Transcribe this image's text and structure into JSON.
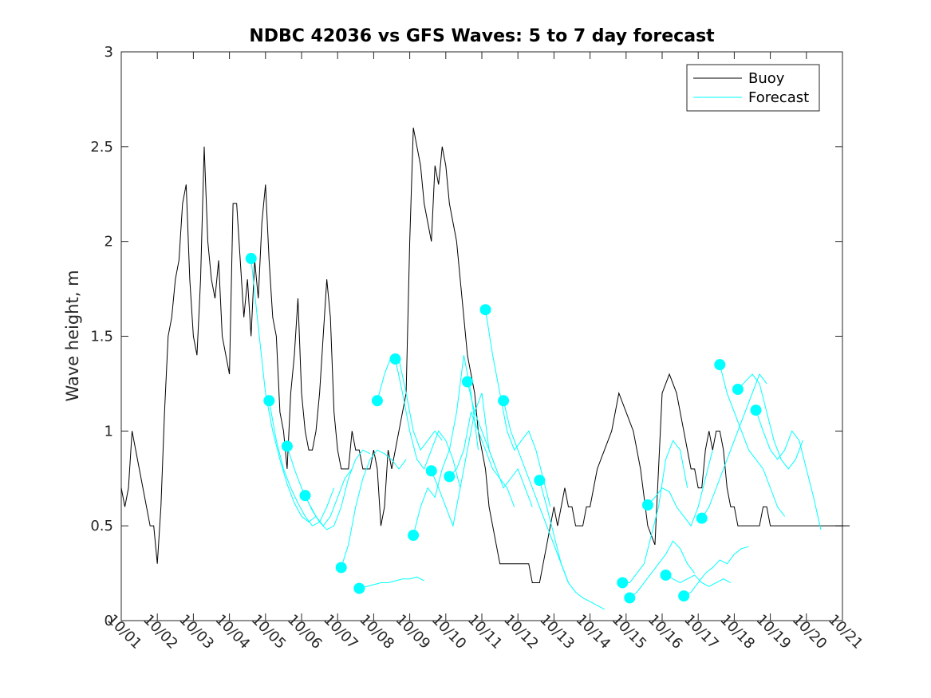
{
  "chart_data": {
    "type": "line",
    "title": "NDBC 42036 vs GFS Waves: 5 to 7 day forecast",
    "xlabel": "",
    "ylabel": "Wave height, m",
    "xlim": [
      0,
      20
    ],
    "ylim": [
      0,
      3
    ],
    "x_tick_labels": [
      "10/01",
      "10/02",
      "10/03",
      "10/04",
      "10/05",
      "10/06",
      "10/07",
      "10/08",
      "10/09",
      "10/10",
      "10/11",
      "10/12",
      "10/13",
      "10/14",
      "10/15",
      "10/16",
      "10/17",
      "10/18",
      "10/19",
      "10/20",
      "10/21"
    ],
    "y_ticks": [
      0,
      0.5,
      1,
      1.5,
      2,
      2.5,
      3
    ],
    "y_tick_labels": [
      "0",
      "0.5",
      "1",
      "1.5",
      "2",
      "2.5",
      "3"
    ],
    "legend": {
      "position": "top-right",
      "entries": [
        "Buoy",
        "Forecast"
      ]
    },
    "colors": {
      "buoy": "#000000",
      "forecast": "#00ffff",
      "axes": "#262626"
    },
    "series": [
      {
        "name": "Buoy",
        "x": [
          0,
          0.1,
          0.2,
          0.3,
          0.4,
          0.5,
          0.6,
          0.7,
          0.8,
          0.9,
          1.0,
          1.1,
          1.2,
          1.25,
          1.3,
          1.4,
          1.5,
          1.6,
          1.7,
          1.8,
          1.9,
          2.0,
          2.1,
          2.2,
          2.3,
          2.4,
          2.5,
          2.6,
          2.7,
          2.8,
          2.9,
          3.0,
          3.1,
          3.2,
          3.3,
          3.4,
          3.5,
          3.6,
          3.7,
          3.8,
          3.9,
          4.0,
          4.1,
          4.2,
          4.3,
          4.4,
          4.5,
          4.6,
          4.7,
          4.8,
          4.9,
          5.0,
          5.1,
          5.2,
          5.3,
          5.4,
          5.5,
          5.6,
          5.7,
          5.8,
          5.9,
          6.0,
          6.1,
          6.2,
          6.3,
          6.4,
          6.5,
          6.6,
          6.7,
          6.8,
          6.9,
          7.0,
          7.1,
          7.2,
          7.3,
          7.4,
          7.5,
          7.6,
          7.7,
          7.8,
          7.9,
          8.0,
          8.1,
          8.2,
          8.3,
          8.4,
          8.5,
          8.6,
          8.7,
          8.8,
          8.9,
          9.0,
          9.1,
          9.2,
          9.3,
          9.4,
          9.5,
          9.6,
          9.7,
          9.8,
          9.9,
          10.0,
          10.1,
          10.2,
          10.3,
          10.4,
          10.5,
          10.6,
          10.7,
          10.8,
          10.9,
          11.0,
          11.1,
          11.2,
          11.3,
          11.4,
          11.5,
          11.6,
          11.7,
          11.8,
          11.9,
          12.0,
          12.1,
          12.2,
          12.3,
          12.4,
          12.5,
          12.6,
          12.7,
          12.8,
          12.9,
          13.0,
          13.2,
          13.4,
          13.6,
          13.8,
          14.0,
          14.2,
          14.4,
          14.6,
          14.8,
          15.0,
          15.2,
          15.4,
          15.6,
          15.7,
          15.8,
          15.9,
          16.0,
          16.1,
          16.2,
          16.3,
          16.4,
          16.5,
          16.6,
          16.7,
          16.8,
          16.9,
          17.0,
          17.1,
          17.2,
          17.3,
          17.4,
          17.5,
          17.6,
          17.7,
          17.8,
          17.9,
          18.0,
          18.1,
          18.2,
          18.3,
          18.4,
          18.5,
          18.6,
          18.7,
          18.8,
          18.9,
          19.0,
          19.1,
          19.2,
          19.3,
          19.4,
          19.5,
          19.6,
          19.7,
          19.8,
          19.9,
          20.0,
          20.1,
          20.2
        ],
        "values": [
          0.7,
          0.6,
          0.7,
          1.0,
          0.9,
          0.8,
          0.7,
          0.6,
          0.5,
          0.5,
          0.3,
          0.6,
          1.1,
          1.3,
          1.5,
          1.6,
          1.8,
          1.9,
          2.2,
          2.3,
          1.8,
          1.5,
          1.4,
          1.8,
          2.5,
          2.0,
          1.8,
          1.7,
          1.9,
          1.5,
          1.4,
          1.3,
          2.2,
          2.2,
          1.9,
          1.6,
          1.8,
          1.5,
          1.9,
          1.7,
          2.1,
          2.3,
          1.9,
          1.6,
          1.5,
          1.1,
          1.0,
          0.8,
          1.2,
          1.4,
          1.7,
          1.2,
          1.0,
          0.9,
          0.9,
          1.0,
          1.2,
          1.5,
          1.8,
          1.6,
          1.1,
          0.9,
          0.8,
          0.8,
          0.8,
          1.0,
          0.9,
          0.9,
          0.8,
          0.8,
          0.8,
          0.9,
          0.8,
          0.5,
          0.6,
          0.9,
          0.8,
          0.9,
          1.0,
          1.1,
          1.2,
          2.0,
          2.6,
          2.5,
          2.4,
          2.2,
          2.1,
          2.0,
          2.4,
          2.3,
          2.5,
          2.4,
          2.2,
          2.1,
          2.0,
          1.8,
          1.6,
          1.4,
          1.3,
          1.2,
          1.0,
          0.9,
          0.8,
          0.6,
          0.5,
          0.4,
          0.3,
          0.3,
          0.3,
          0.3,
          0.3,
          0.3,
          0.3,
          0.3,
          0.3,
          0.2,
          0.2,
          0.2,
          0.3,
          0.4,
          0.5,
          0.6,
          0.5,
          0.6,
          0.7,
          0.6,
          0.6,
          0.5,
          0.5,
          0.5,
          0.6,
          0.6,
          0.8,
          0.9,
          1.0,
          1.2,
          1.1,
          1.0,
          0.8,
          0.5,
          0.4,
          1.2,
          1.3,
          1.2,
          1.0,
          0.9,
          0.8,
          0.8,
          0.7,
          0.7,
          0.9,
          1.0,
          0.9,
          1.0,
          1.0,
          0.9,
          0.7,
          0.6,
          0.6,
          0.5,
          0.5,
          0.5,
          0.5,
          0.5,
          0.5,
          0.5,
          0.6,
          0.6,
          0.5,
          0.5,
          0.5,
          0.5,
          0.5,
          0.5,
          0.5,
          0.5,
          0.5,
          0.5,
          0.5,
          0.5,
          0.5,
          0.5,
          0.5,
          0.5,
          0.5,
          0.5,
          0.5,
          0.5,
          0.5,
          0.5,
          0.5
        ]
      },
      {
        "name": "Forecast",
        "runs": [
          {
            "x": [
              3.6,
              3.8,
              4.0,
              4.2,
              4.4,
              4.6,
              4.8,
              5.0,
              5.2,
              5.4
            ],
            "values": [
              1.91,
              1.55,
              1.2,
              1.0,
              0.85,
              0.72,
              0.62,
              0.55,
              0.52,
              0.55
            ]
          },
          {
            "x": [
              4.1,
              4.3,
              4.5,
              4.7,
              4.9,
              5.1,
              5.3,
              5.5,
              5.7,
              5.9
            ],
            "values": [
              1.16,
              0.95,
              0.8,
              0.7,
              0.62,
              0.55,
              0.5,
              0.52,
              0.6,
              0.7
            ]
          },
          {
            "x": [
              4.6,
              4.8,
              5.0,
              5.2,
              5.4,
              5.6,
              5.8,
              6.0,
              6.2,
              6.4
            ],
            "values": [
              0.92,
              0.8,
              0.7,
              0.62,
              0.55,
              0.5,
              0.55,
              0.65,
              0.75,
              0.8
            ]
          },
          {
            "x": [
              5.1,
              5.3,
              5.5,
              5.7,
              5.9,
              6.1,
              6.3,
              6.5,
              6.7,
              6.9
            ],
            "values": [
              0.66,
              0.58,
              0.52,
              0.48,
              0.5,
              0.6,
              0.75,
              0.85,
              0.9,
              0.88
            ]
          },
          {
            "x": [
              6.1,
              6.3,
              6.5,
              6.7,
              6.9,
              7.1,
              7.3,
              7.5,
              7.7,
              7.9
            ],
            "values": [
              0.28,
              0.4,
              0.6,
              0.75,
              0.85,
              0.9,
              0.88,
              0.85,
              0.8,
              0.85
            ]
          },
          {
            "x": [
              6.6,
              6.8,
              7.0,
              7.2,
              7.4,
              7.6,
              7.8,
              8.0,
              8.2,
              8.4
            ],
            "values": [
              0.17,
              0.18,
              0.19,
              0.2,
              0.2,
              0.21,
              0.22,
              0.22,
              0.23,
              0.21
            ]
          },
          {
            "x": [
              7.1,
              7.3,
              7.5,
              7.7,
              7.9,
              8.1,
              8.3,
              8.5,
              8.7,
              8.9
            ],
            "values": [
              1.16,
              1.3,
              1.4,
              1.38,
              1.2,
              1.0,
              0.9,
              0.95,
              1.0,
              0.95
            ]
          },
          {
            "x": [
              7.6,
              7.8,
              8.0,
              8.2,
              8.4,
              8.6,
              8.8,
              9.0,
              9.2,
              9.4
            ],
            "values": [
              1.38,
              1.2,
              1.0,
              0.85,
              0.8,
              0.9,
              1.0,
              0.95,
              0.85,
              0.7
            ]
          },
          {
            "x": [
              8.1,
              8.3,
              8.5,
              8.7,
              8.9,
              9.1,
              9.3,
              9.5,
              9.7,
              9.9
            ],
            "values": [
              0.45,
              0.6,
              0.7,
              0.65,
              0.8,
              0.9,
              1.1,
              1.4,
              1.2,
              0.9
            ]
          },
          {
            "x": [
              8.6,
              8.8,
              9.0,
              9.2,
              9.4,
              9.6,
              9.8,
              10.0,
              10.2,
              10.4
            ],
            "values": [
              0.79,
              0.7,
              0.6,
              0.5,
              0.7,
              0.9,
              1.1,
              1.2,
              0.9,
              0.8
            ]
          },
          {
            "x": [
              9.1,
              9.3,
              9.5,
              9.7,
              9.9,
              10.1,
              10.3,
              10.5,
              10.7,
              10.9
            ],
            "values": [
              0.76,
              0.8,
              0.9,
              1.1,
              1.0,
              0.9,
              0.8,
              0.75,
              0.7,
              0.6
            ]
          },
          {
            "x": [
              9.6,
              9.8,
              10.0,
              10.2,
              10.4,
              10.6,
              10.8,
              11.0,
              11.2,
              11.4
            ],
            "values": [
              1.26,
              1.1,
              1.0,
              0.9,
              0.8,
              0.7,
              0.75,
              0.8,
              0.7,
              0.6
            ]
          },
          {
            "x": [
              10.1,
              10.3,
              10.5,
              10.7,
              10.9,
              11.1,
              11.3,
              11.5,
              11.7,
              11.9
            ],
            "values": [
              1.64,
              1.4,
              1.2,
              1.0,
              0.9,
              0.95,
              1.0,
              0.9,
              0.75,
              0.6
            ]
          },
          {
            "x": [
              10.6,
              10.8,
              11.0,
              11.2,
              11.4,
              11.6,
              11.8,
              12.0,
              12.2,
              12.4
            ],
            "values": [
              1.16,
              1.0,
              0.9,
              0.8,
              0.7,
              0.6,
              0.5,
              0.4,
              0.3,
              0.2
            ]
          },
          {
            "x": [
              11.6,
              11.8,
              12.0,
              12.2,
              12.4,
              12.6,
              12.8,
              13.0,
              13.2,
              13.4
            ],
            "values": [
              0.74,
              0.6,
              0.45,
              0.3,
              0.2,
              0.15,
              0.12,
              0.1,
              0.08,
              0.06
            ]
          },
          {
            "x": [
              13.9,
              14.1,
              14.3,
              14.5,
              14.7,
              14.9,
              15.1,
              15.3,
              15.5,
              15.7
            ],
            "values": [
              0.2,
              0.2,
              0.25,
              0.3,
              0.45,
              0.6,
              0.85,
              0.95,
              0.9,
              0.7
            ]
          },
          {
            "x": [
              14.1,
              14.3,
              14.5,
              14.7,
              14.9,
              15.1,
              15.3,
              15.5,
              15.7,
              15.9
            ],
            "values": [
              0.12,
              0.15,
              0.2,
              0.25,
              0.3,
              0.35,
              0.42,
              0.38,
              0.3,
              0.25
            ]
          },
          {
            "x": [
              14.6,
              14.8,
              15.0,
              15.2,
              15.4,
              15.6,
              15.8,
              16.0,
              16.2,
              16.4
            ],
            "values": [
              0.61,
              0.65,
              0.7,
              0.68,
              0.6,
              0.55,
              0.5,
              0.6,
              0.75,
              0.9
            ]
          },
          {
            "x": [
              15.1,
              15.3,
              15.5,
              15.7,
              15.9,
              16.1,
              16.3,
              16.5,
              16.7,
              16.9
            ],
            "values": [
              0.24,
              0.22,
              0.2,
              0.22,
              0.24,
              0.2,
              0.18,
              0.2,
              0.22,
              0.2
            ]
          },
          {
            "x": [
              15.6,
              15.8,
              16.0,
              16.2,
              16.4,
              16.6,
              16.8,
              17.0,
              17.2,
              17.4
            ],
            "values": [
              0.13,
              0.15,
              0.2,
              0.25,
              0.28,
              0.32,
              0.3,
              0.35,
              0.38,
              0.39
            ]
          },
          {
            "x": [
              16.1,
              16.3,
              16.5,
              16.7,
              16.9,
              17.1,
              17.3,
              17.5,
              17.7,
              17.9
            ],
            "values": [
              0.54,
              0.6,
              0.7,
              0.8,
              0.9,
              1.0,
              1.1,
              1.2,
              1.3,
              1.25
            ]
          },
          {
            "x": [
              16.6,
              16.8,
              17.0,
              17.2,
              17.4,
              17.6,
              17.8,
              18.0,
              18.2,
              18.4
            ],
            "values": [
              1.35,
              1.2,
              1.1,
              1.0,
              0.9,
              0.85,
              0.8,
              0.7,
              0.6,
              0.55
            ]
          },
          {
            "x": [
              17.1,
              17.3,
              17.5,
              17.7,
              17.9,
              18.1,
              18.3,
              18.5,
              18.7,
              18.9
            ],
            "values": [
              1.22,
              1.26,
              1.3,
              1.25,
              1.1,
              0.95,
              0.85,
              0.8,
              0.85,
              0.95
            ]
          },
          {
            "x": [
              17.6,
              17.8,
              18.0,
              18.2,
              18.4,
              18.6,
              18.8,
              19.0,
              19.2,
              19.4
            ],
            "values": [
              1.11,
              1.0,
              0.9,
              0.85,
              0.9,
              1.0,
              0.95,
              0.8,
              0.65,
              0.48
            ]
          }
        ]
      }
    ]
  }
}
